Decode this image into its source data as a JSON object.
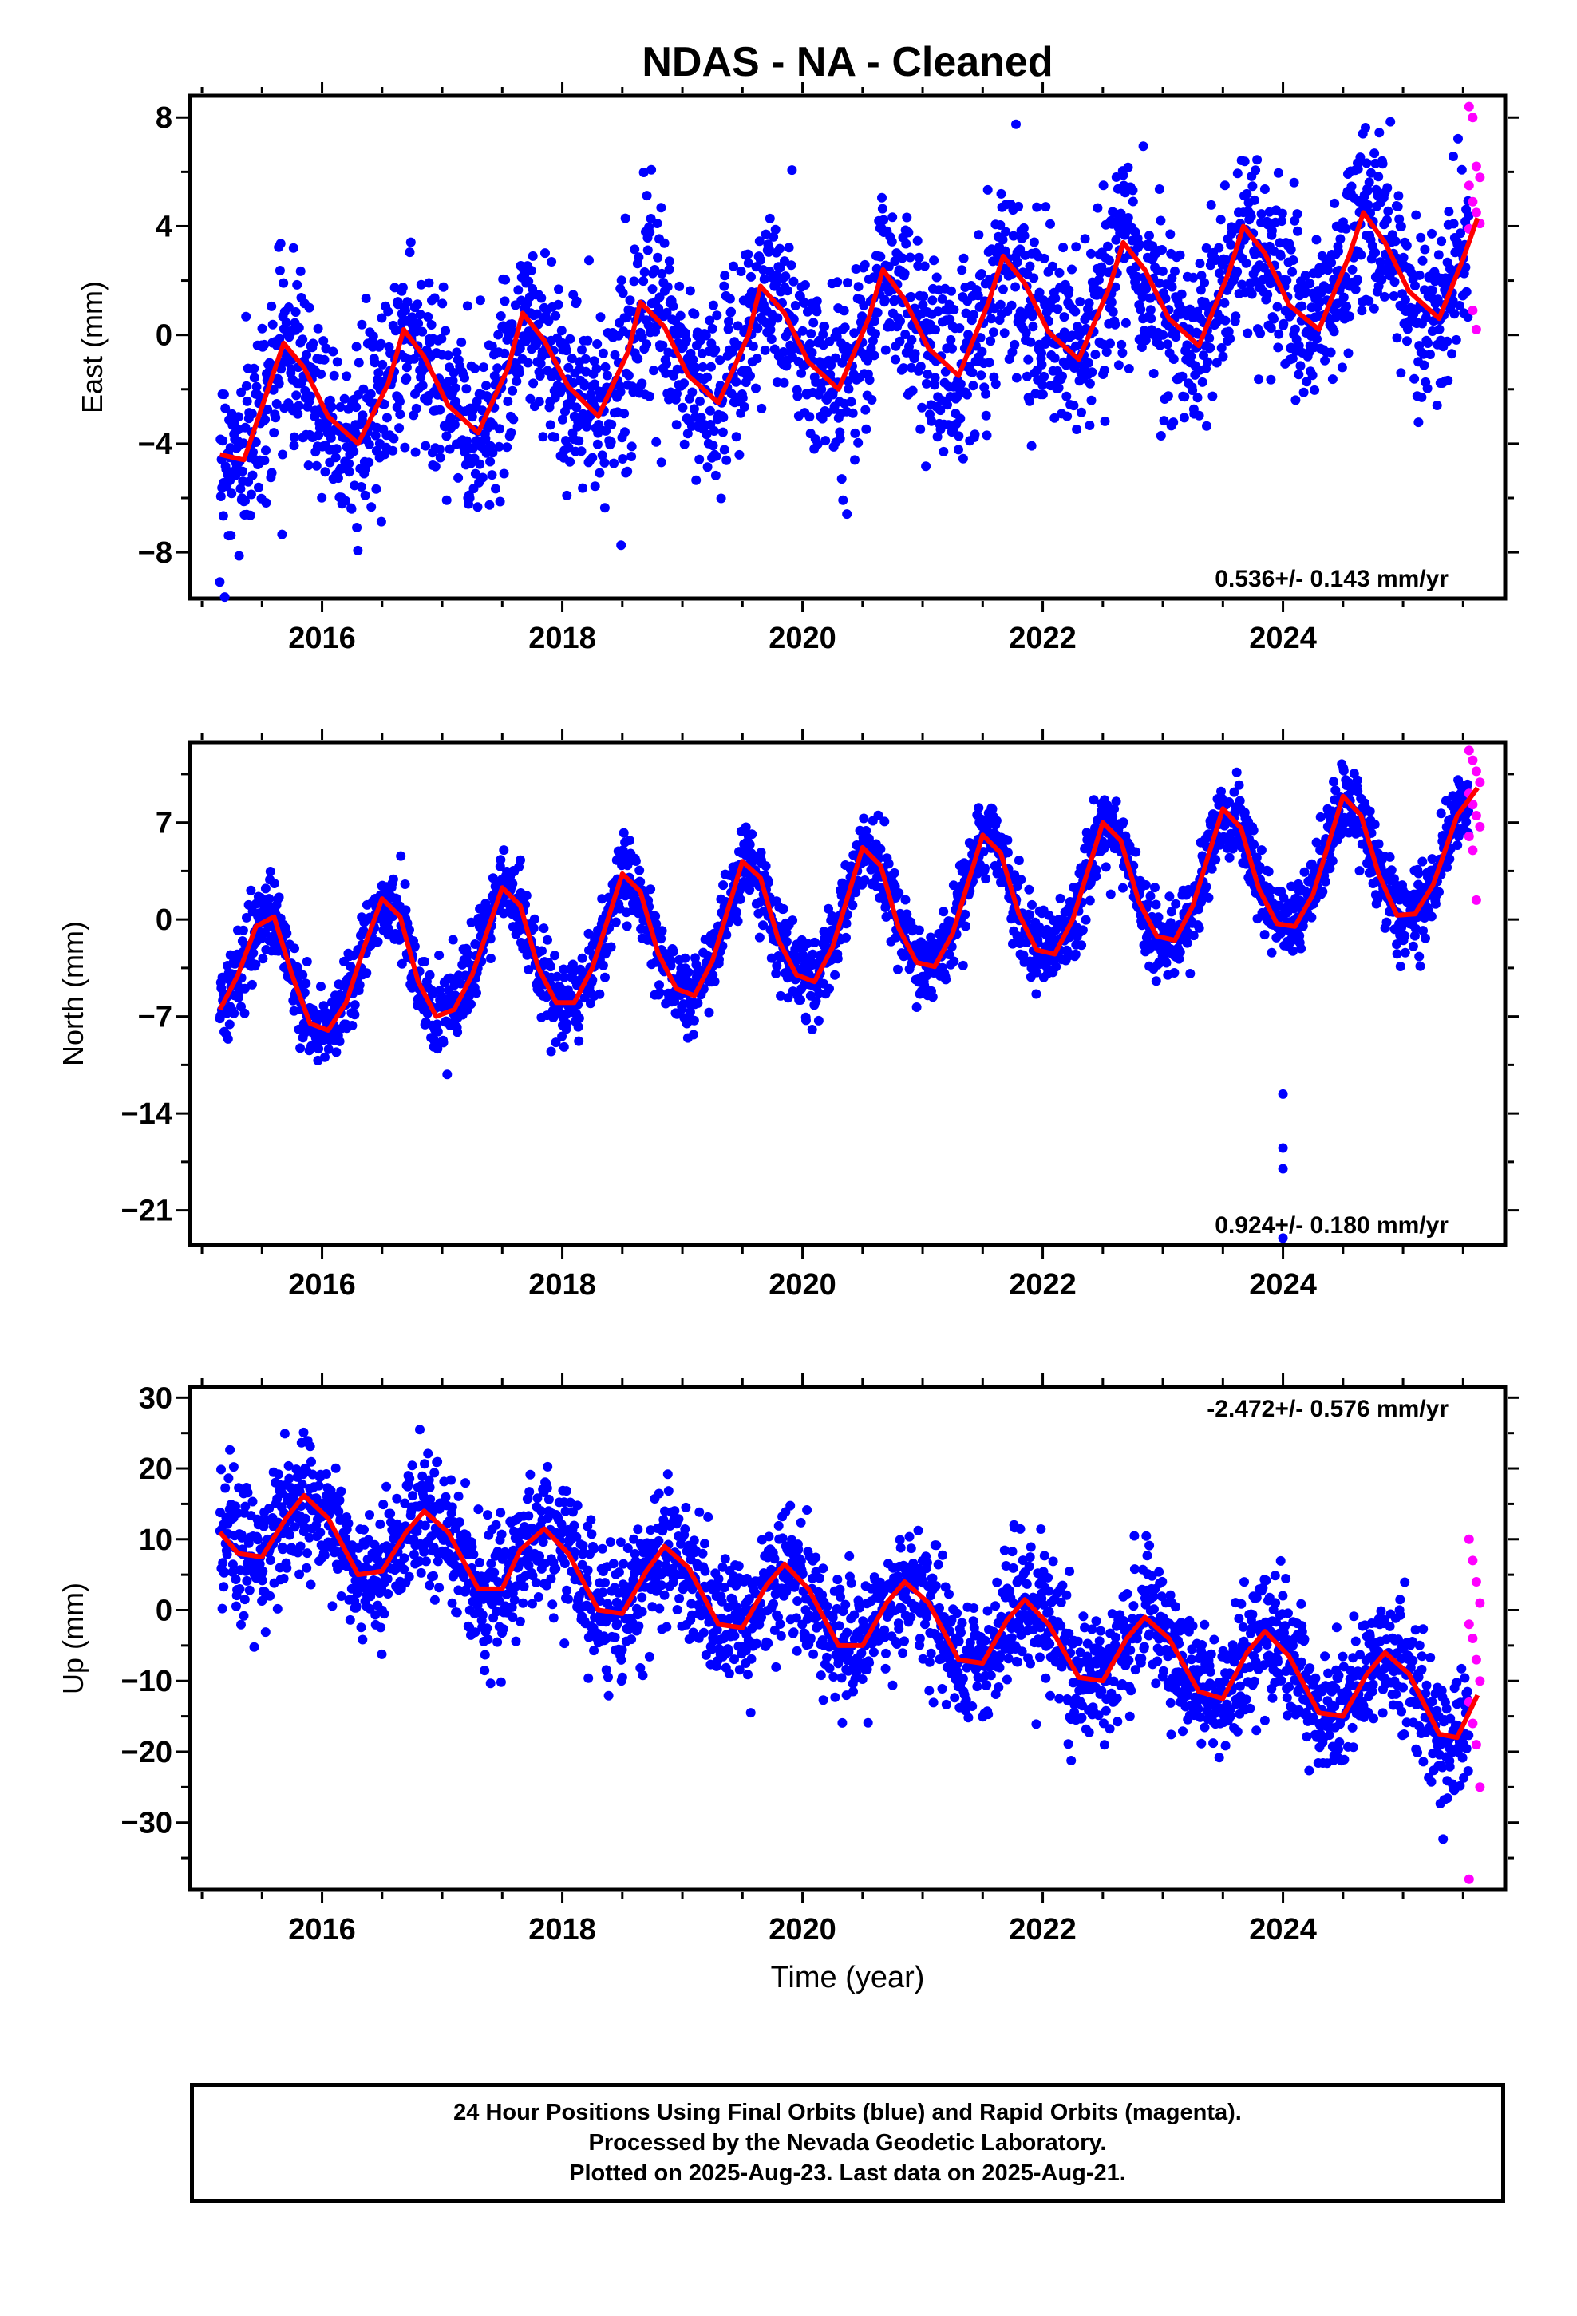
{
  "figure": {
    "title": "NDAS  - NA - Cleaned",
    "xlabel": "Time (year)"
  },
  "chart_data": [
    {
      "type": "scatter",
      "title": "NDAS  - NA - Cleaned",
      "ylabel": "East (mm)",
      "xlabel": "",
      "xlim": [
        2014.9,
        2025.85
      ],
      "ylim": [
        -9.7,
        8.8
      ],
      "xticks": [
        2016,
        2018,
        2020,
        2022,
        2024
      ],
      "yticks": [
        -8,
        -4,
        0,
        4,
        8
      ],
      "ytick_labels": [
        "−8",
        "−4",
        "0",
        "4",
        "8"
      ],
      "grid": false,
      "annotation": "0.536+/- 0.143 mm/yr",
      "annotation_position": "bottom-right",
      "trend": {
        "start_year": 2015.15,
        "start_value": -4.4,
        "slope_mm_per_yr": 0.536
      },
      "model": {
        "annual_amplitude": 2.6,
        "annual_phase_year": 0.67
      },
      "series": [
        {
          "name": "Final Orbits",
          "color": "#0000ff",
          "x_range": [
            2015.15,
            2025.55
          ],
          "y_scatter": 1.7
        },
        {
          "name": "Rapid Orbits",
          "color": "#ff00ff",
          "x_range": [
            2025.55,
            2025.64
          ],
          "y_values": [
            8.4,
            8.0,
            6.2,
            5.8,
            5.5,
            4.9,
            4.5,
            4.1,
            3.9,
            0.9,
            0.2
          ]
        },
        {
          "name": "Model fit",
          "color": "#ff0000",
          "type": "line",
          "x": [
            2015.15,
            2015.35,
            2015.55,
            2015.68,
            2015.85,
            2016.05,
            2016.3,
            2016.55,
            2016.68,
            2016.85,
            2017.05,
            2017.3,
            2017.55,
            2017.67,
            2017.85,
            2018.05,
            2018.3,
            2018.55,
            2018.65,
            2018.85,
            2019.05,
            2019.3,
            2019.55,
            2019.65,
            2019.85,
            2020.05,
            2020.3,
            2020.55,
            2020.67,
            2020.85,
            2021.05,
            2021.3,
            2021.55,
            2021.67,
            2021.85,
            2022.05,
            2022.3,
            2022.55,
            2022.67,
            2022.85,
            2023.05,
            2023.3,
            2023.55,
            2023.67,
            2023.85,
            2024.05,
            2024.3,
            2024.55,
            2024.67,
            2024.85,
            2025.05,
            2025.3,
            2025.5,
            2025.62
          ],
          "y": [
            -4.4,
            -4.6,
            -2.0,
            -0.3,
            -1.2,
            -3.0,
            -4.0,
            -1.8,
            0.2,
            -0.8,
            -2.6,
            -3.6,
            -1.2,
            0.8,
            -0.2,
            -1.9,
            -3.0,
            -0.6,
            1.2,
            0.3,
            -1.5,
            -2.5,
            0.0,
            1.8,
            0.8,
            -1.0,
            -2.0,
            0.6,
            2.4,
            1.3,
            -0.5,
            -1.5,
            1.2,
            2.9,
            1.9,
            0.1,
            -0.9,
            1.7,
            3.4,
            2.4,
            0.6,
            -0.4,
            2.3,
            4.0,
            3.0,
            1.1,
            0.2,
            2.9,
            4.5,
            3.4,
            1.6,
            0.6,
            2.8,
            4.3
          ]
        }
      ]
    },
    {
      "type": "scatter",
      "title": "",
      "ylabel": "North (mm)",
      "xlabel": "",
      "xlim": [
        2014.9,
        2025.85
      ],
      "ylim": [
        -23.5,
        12.8
      ],
      "xticks": [
        2016,
        2018,
        2020,
        2022,
        2024
      ],
      "yticks": [
        -21,
        -14,
        -7,
        0,
        7
      ],
      "ytick_labels": [
        "−21",
        "−14",
        "−7",
        "0",
        "7"
      ],
      "grid": false,
      "annotation": "0.924+/- 0.180 mm/yr",
      "annotation_position": "bottom-right",
      "outliers": [
        [
          2024.0,
          -12.6
        ],
        [
          2024.0,
          -16.5
        ],
        [
          2024.0,
          -18.0
        ],
        [
          2024.0,
          -23.0
        ]
      ],
      "series": [
        {
          "name": "Final Orbits",
          "color": "#0000ff",
          "x_range": [
            2015.15,
            2025.55
          ],
          "y_scatter": 1.4
        },
        {
          "name": "Rapid Orbits",
          "color": "#ff00ff",
          "x_range": [
            2025.55,
            2025.64
          ],
          "y_values": [
            12.2,
            11.5,
            10.7,
            9.9,
            9.1,
            8.3,
            7.5,
            6.7,
            6.0,
            5.0,
            1.4
          ]
        },
        {
          "name": "Model fit",
          "color": "#ff0000",
          "type": "line",
          "x": [
            2015.15,
            2015.3,
            2015.45,
            2015.6,
            2015.75,
            2015.9,
            2016.05,
            2016.2,
            2016.35,
            2016.5,
            2016.65,
            2016.8,
            2016.95,
            2017.1,
            2017.25,
            2017.5,
            2017.65,
            2017.8,
            2017.95,
            2018.1,
            2018.25,
            2018.5,
            2018.65,
            2018.8,
            2018.95,
            2019.1,
            2019.25,
            2019.5,
            2019.65,
            2019.8,
            2019.95,
            2020.1,
            2020.25,
            2020.5,
            2020.65,
            2020.8,
            2020.95,
            2021.1,
            2021.25,
            2021.5,
            2021.65,
            2021.8,
            2021.95,
            2022.1,
            2022.25,
            2022.5,
            2022.65,
            2022.8,
            2022.95,
            2023.1,
            2023.25,
            2023.5,
            2023.65,
            2023.8,
            2023.95,
            2024.1,
            2024.25,
            2024.5,
            2024.65,
            2024.8,
            2024.95,
            2025.1,
            2025.25,
            2025.45,
            2025.62
          ],
          "y": [
            -6.5,
            -4.0,
            -0.5,
            0.2,
            -4.0,
            -7.5,
            -8.0,
            -6.0,
            -2.0,
            1.5,
            0.2,
            -4.5,
            -7.0,
            -6.5,
            -4.0,
            2.3,
            1.0,
            -3.5,
            -6.0,
            -6.0,
            -3.5,
            3.3,
            2.0,
            -2.5,
            -5.0,
            -5.5,
            -3.0,
            4.2,
            3.0,
            -1.5,
            -4.0,
            -4.5,
            -2.0,
            5.2,
            3.9,
            -0.6,
            -3.1,
            -3.4,
            -1.0,
            6.1,
            4.8,
            0.4,
            -2.2,
            -2.5,
            0.0,
            7.0,
            5.7,
            1.3,
            -1.2,
            -1.5,
            1.0,
            8.0,
            6.6,
            2.2,
            -0.3,
            -0.5,
            1.8,
            8.9,
            7.5,
            3.2,
            0.3,
            0.4,
            2.5,
            7.5,
            9.5
          ]
        }
      ]
    },
    {
      "type": "scatter",
      "title": "",
      "ylabel": "Up (mm)",
      "xlabel": "Time (year)",
      "xlim": [
        2014.9,
        2025.85
      ],
      "ylim": [
        -39.5,
        31.5
      ],
      "xticks": [
        2016,
        2018,
        2020,
        2022,
        2024
      ],
      "yticks": [
        -30,
        -20,
        -10,
        0,
        10,
        20,
        30
      ],
      "ytick_labels": [
        "−30",
        "−20",
        "−10",
        "0",
        "10",
        "20",
        "30"
      ],
      "grid": false,
      "annotation": "-2.472+/- 0.576 mm/yr",
      "annotation_position": "top-right",
      "series": [
        {
          "name": "Final Orbits",
          "color": "#0000ff",
          "x_range": [
            2015.15,
            2025.55
          ],
          "y_scatter": 4.5
        },
        {
          "name": "Rapid Orbits",
          "color": "#ff00ff",
          "x_range": [
            2025.55,
            2025.64
          ],
          "y_values": [
            10.0,
            7.0,
            4.0,
            1.0,
            -2.0,
            -4.0,
            -7.0,
            -10.0,
            -13.0,
            -16.0,
            -19.0,
            -25.0,
            -38.0
          ]
        },
        {
          "name": "Model fit",
          "color": "#ff0000",
          "type": "line",
          "x": [
            2015.15,
            2015.3,
            2015.5,
            2015.7,
            2015.85,
            2016.05,
            2016.3,
            2016.5,
            2016.7,
            2016.85,
            2017.05,
            2017.3,
            2017.5,
            2017.65,
            2017.85,
            2018.05,
            2018.3,
            2018.5,
            2018.7,
            2018.85,
            2019.05,
            2019.3,
            2019.5,
            2019.7,
            2019.85,
            2020.05,
            2020.3,
            2020.5,
            2020.7,
            2020.85,
            2021.05,
            2021.3,
            2021.5,
            2021.7,
            2021.85,
            2022.05,
            2022.3,
            2022.5,
            2022.7,
            2022.85,
            2023.05,
            2023.3,
            2023.5,
            2023.7,
            2023.85,
            2024.05,
            2024.3,
            2024.5,
            2024.7,
            2024.85,
            2025.05,
            2025.3,
            2025.45,
            2025.62
          ],
          "y": [
            11.0,
            8.0,
            7.5,
            13.0,
            16.2,
            13.0,
            5.0,
            5.5,
            11.0,
            14.0,
            11.0,
            3.0,
            3.0,
            8.5,
            11.5,
            8.0,
            0.0,
            -0.5,
            5.5,
            9.0,
            6.0,
            -2.0,
            -2.5,
            3.5,
            6.5,
            3.0,
            -5.0,
            -5.0,
            1.0,
            4.0,
            1.0,
            -7.0,
            -7.5,
            -1.5,
            1.5,
            -2.0,
            -9.5,
            -10.0,
            -4.0,
            -1.0,
            -4.0,
            -11.5,
            -12.5,
            -6.0,
            -3.0,
            -6.5,
            -14.5,
            -15.0,
            -9.0,
            -6.0,
            -9.0,
            -17.5,
            -18.0,
            -12.0
          ]
        }
      ]
    }
  ],
  "footer": {
    "line1": "24 Hour Positions Using Final Orbits (blue) and Rapid Orbits (magenta).",
    "line2": "Processed by the Nevada Geodetic Laboratory.",
    "line3": "Plotted on 2025-Aug-23. Last data on 2025-Aug-21."
  }
}
